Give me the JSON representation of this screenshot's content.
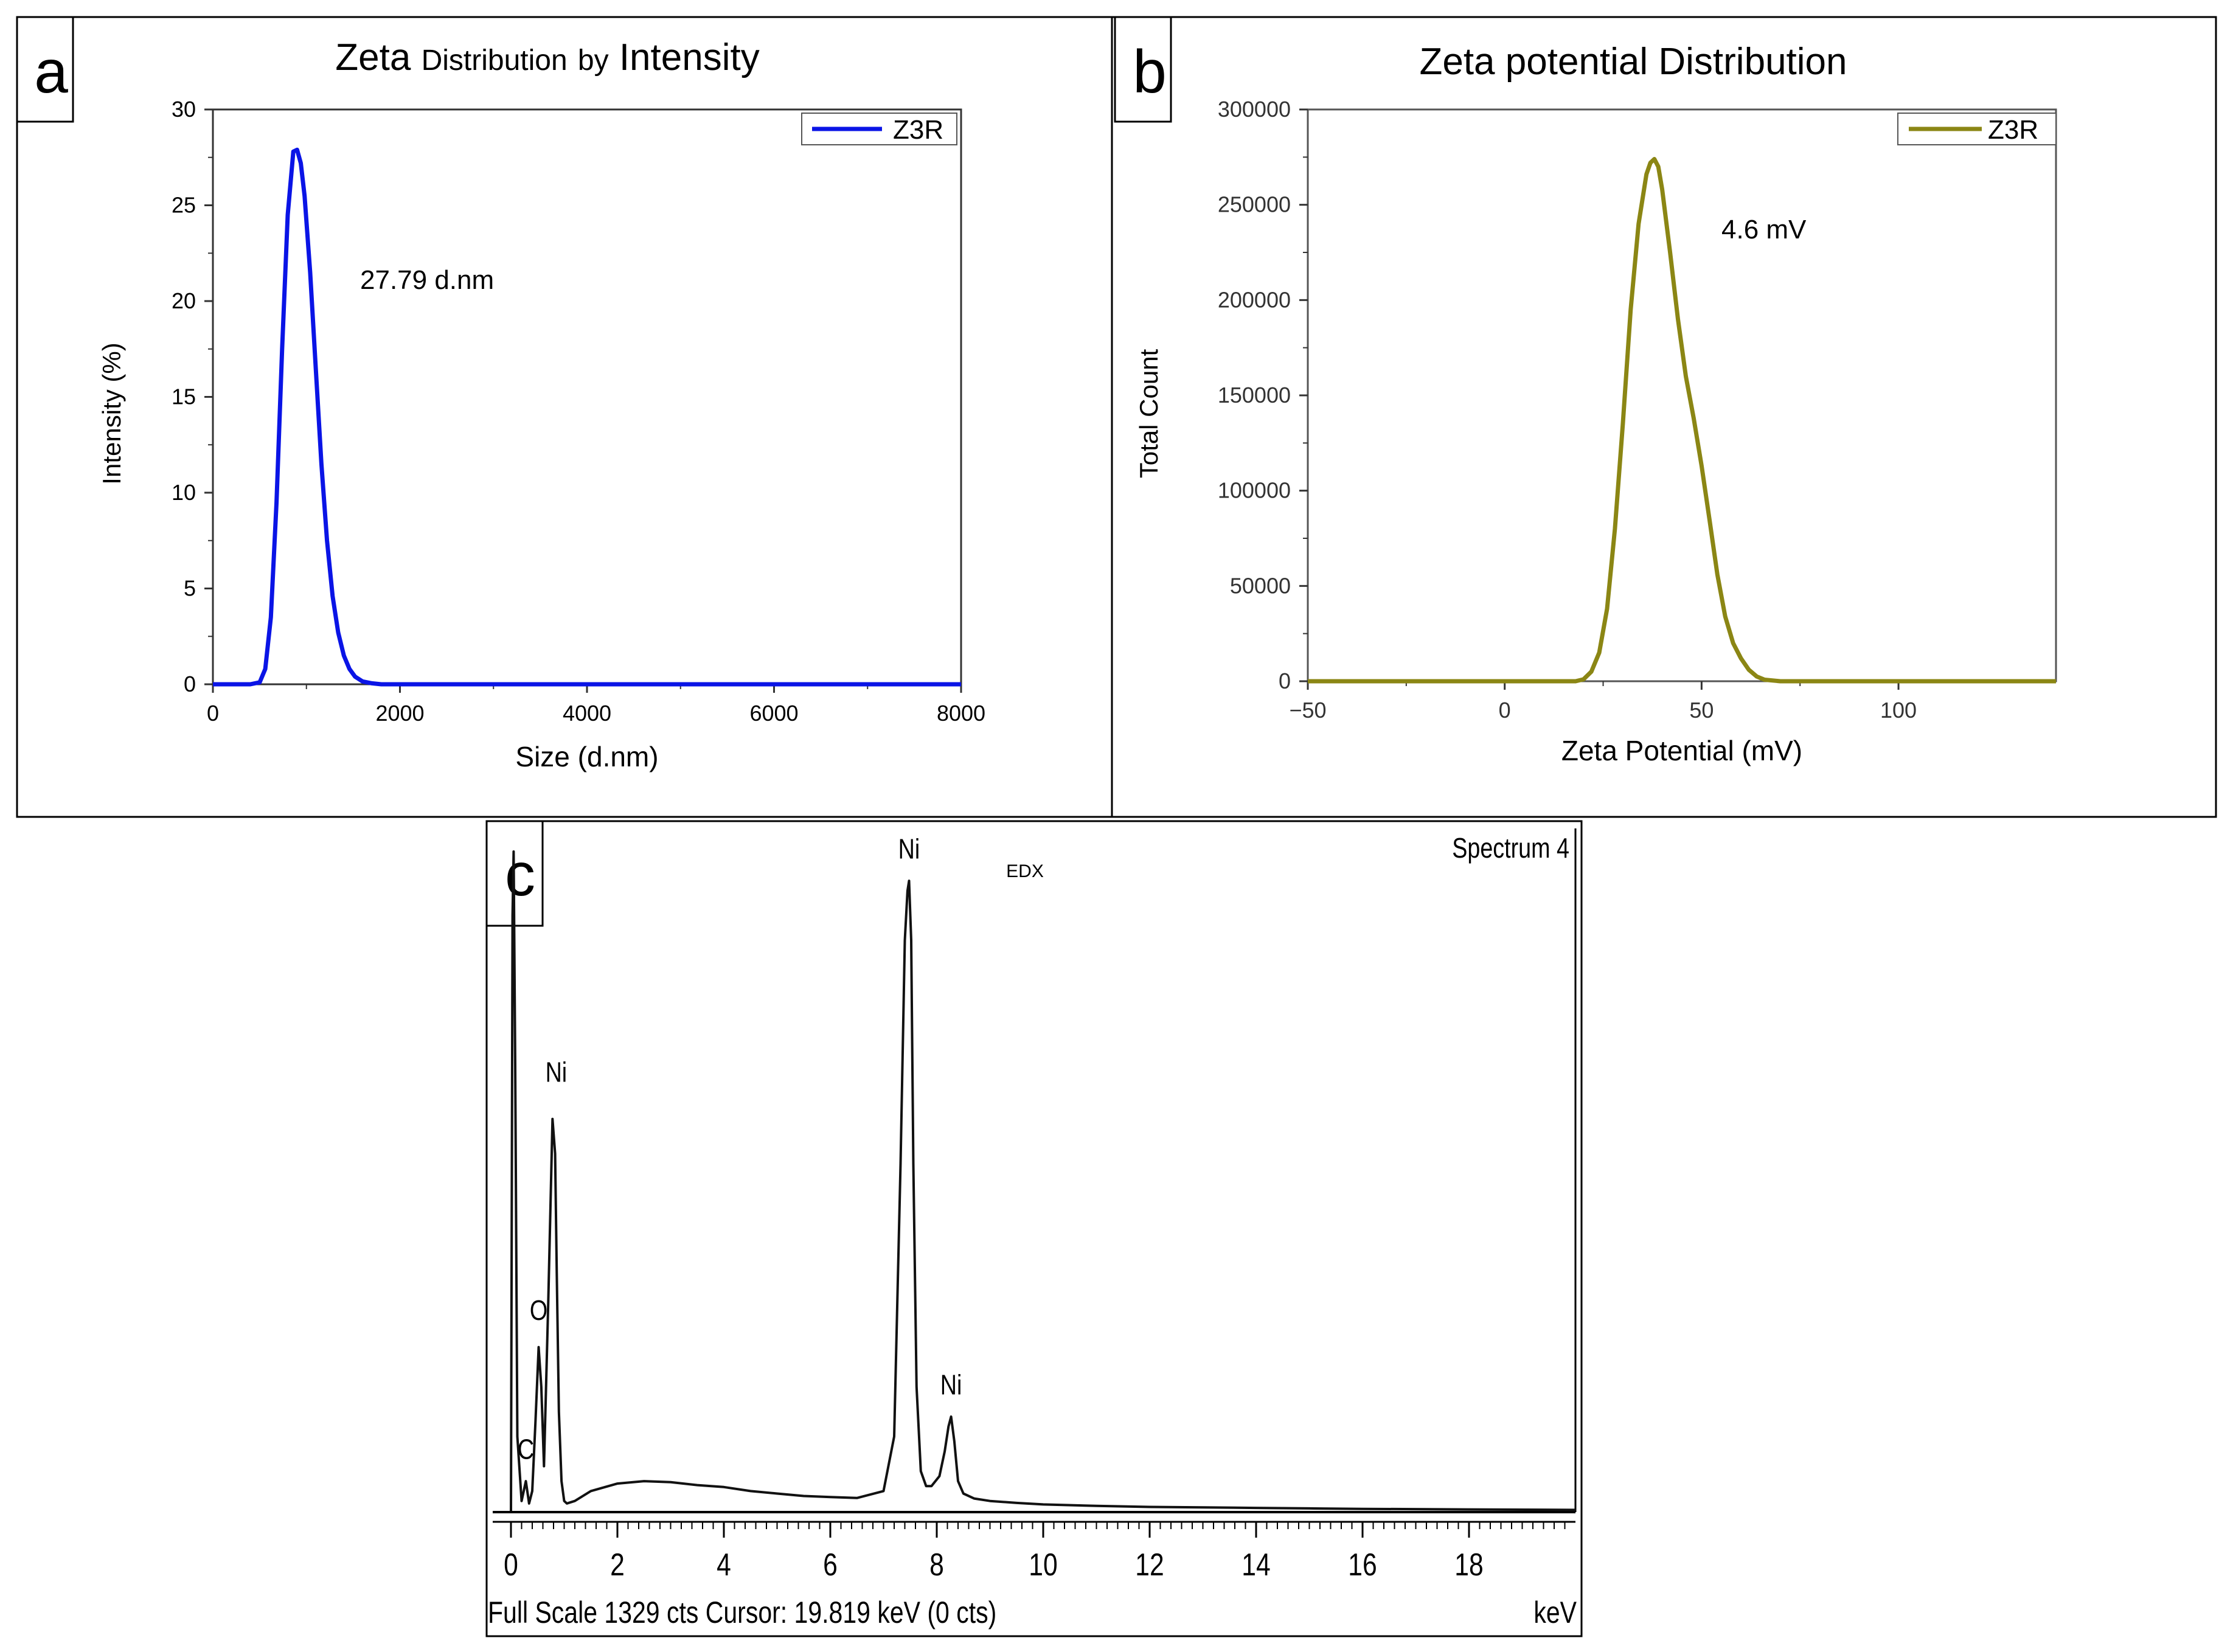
{
  "figure": {
    "panel_labels": [
      "a",
      "b",
      "c"
    ]
  },
  "chart_data": [
    {
      "id": "a",
      "type": "line",
      "title_parts": [
        "Zeta",
        "Distribution",
        "by",
        "Intensity"
      ],
      "xlabel": "Size (d.nm)",
      "ylabel": "Intensity (%)",
      "xlim": [
        0,
        8000
      ],
      "ylim": [
        0,
        30
      ],
      "xticks": [
        0,
        2000,
        4000,
        6000,
        8000
      ],
      "yticks": [
        0,
        5,
        10,
        15,
        20,
        25,
        30
      ],
      "legend": "Z3R",
      "legend_position": "top-right",
      "annotation": "27.79 d.nm",
      "color": "#0a14e6",
      "series": [
        {
          "name": "Z3R",
          "x": [
            0,
            400,
            500,
            560,
            620,
            680,
            740,
            800,
            860,
            900,
            940,
            980,
            1040,
            1100,
            1160,
            1220,
            1280,
            1340,
            1400,
            1460,
            1520,
            1600,
            1700,
            1800,
            2000,
            4000,
            8000
          ],
          "y": [
            0,
            0,
            0.1,
            0.8,
            3.5,
            9.5,
            17.5,
            24.5,
            27.8,
            27.9,
            27.2,
            25.5,
            21.5,
            16.5,
            11.5,
            7.5,
            4.6,
            2.7,
            1.5,
            0.8,
            0.4,
            0.15,
            0.05,
            0,
            0,
            0,
            0
          ]
        }
      ]
    },
    {
      "id": "b",
      "type": "line",
      "title": "Zeta potential Distribution",
      "xlabel": "Zeta Potential (mV)",
      "ylabel": "Total Count",
      "xlim": [
        -50,
        140
      ],
      "ylim": [
        0,
        300000
      ],
      "xticks": [
        -50,
        0,
        50,
        100
      ],
      "yticks": [
        0,
        50000,
        100000,
        150000,
        200000,
        250000,
        300000
      ],
      "legend": "Z3R",
      "legend_position": "top-right",
      "annotation": "4.6 mV",
      "color": "#8b8614",
      "series": [
        {
          "name": "Z3R",
          "x": [
            -50,
            18,
            20,
            22,
            24,
            26,
            28,
            30,
            32,
            34,
            36,
            37,
            38,
            39,
            40,
            42,
            44,
            46,
            48,
            50,
            52,
            54,
            56,
            58,
            60,
            62,
            64,
            66,
            70,
            140
          ],
          "y": [
            0,
            0,
            1000,
            5000,
            15000,
            38000,
            80000,
            135000,
            195000,
            240000,
            266000,
            272000,
            274000,
            270000,
            258000,
            225000,
            190000,
            160000,
            138000,
            113000,
            85000,
            56000,
            34000,
            20000,
            12000,
            6000,
            2500,
            800,
            0,
            0
          ]
        }
      ]
    },
    {
      "id": "c",
      "type": "line",
      "title": "EDX",
      "corner_label": "Spectrum 4",
      "xlabel": "keV",
      "footer": "Full Scale 1329 cts  Cursor: 19.819 keV (0 cts)",
      "xlim": [
        0,
        20
      ],
      "xticks": [
        0,
        2,
        4,
        6,
        8,
        10,
        12,
        14,
        16,
        18
      ],
      "ylim": [
        0,
        1329
      ],
      "peak_labels": [
        {
          "text": "C",
          "x": 0.28,
          "y": 90
        },
        {
          "text": "O",
          "x": 0.52,
          "y": 370
        },
        {
          "text": "Ni",
          "x": 0.85,
          "y": 850
        },
        {
          "text": "Ni",
          "x": 7.48,
          "y": 1300
        },
        {
          "text": "Ni",
          "x": 8.27,
          "y": 220
        }
      ],
      "color": "#111111",
      "series": [
        {
          "name": "Spectrum 4",
          "x": [
            0,
            0.03,
            0.05,
            0.08,
            0.12,
            0.2,
            0.28,
            0.34,
            0.4,
            0.46,
            0.52,
            0.57,
            0.62,
            0.7,
            0.78,
            0.83,
            0.86,
            0.9,
            0.95,
            1.0,
            1.05,
            1.2,
            1.5,
            2.0,
            2.5,
            3.0,
            3.5,
            4.0,
            4.5,
            5.0,
            5.5,
            6.0,
            6.5,
            7.0,
            7.2,
            7.32,
            7.4,
            7.45,
            7.48,
            7.52,
            7.56,
            7.62,
            7.7,
            7.8,
            7.9,
            8.05,
            8.15,
            8.22,
            8.27,
            8.33,
            8.4,
            8.5,
            8.7,
            9.0,
            9.5,
            10.0,
            11.0,
            12.0,
            13.0,
            14.0,
            15.0,
            16.0,
            18.0,
            20.0
          ],
          "y": [
            0,
            1200,
            1329,
            900,
            150,
            20,
            60,
            15,
            40,
            180,
            330,
            250,
            90,
            420,
            790,
            720,
            480,
            200,
            60,
            20,
            15,
            20,
            40,
            55,
            60,
            58,
            52,
            48,
            40,
            35,
            30,
            28,
            26,
            40,
            150,
            700,
            1150,
            1250,
            1270,
            1150,
            700,
            250,
            80,
            50,
            50,
            70,
            120,
            170,
            190,
            140,
            60,
            35,
            25,
            20,
            16,
            13,
            10,
            8,
            7,
            6,
            5,
            4,
            3,
            2
          ]
        }
      ]
    }
  ]
}
